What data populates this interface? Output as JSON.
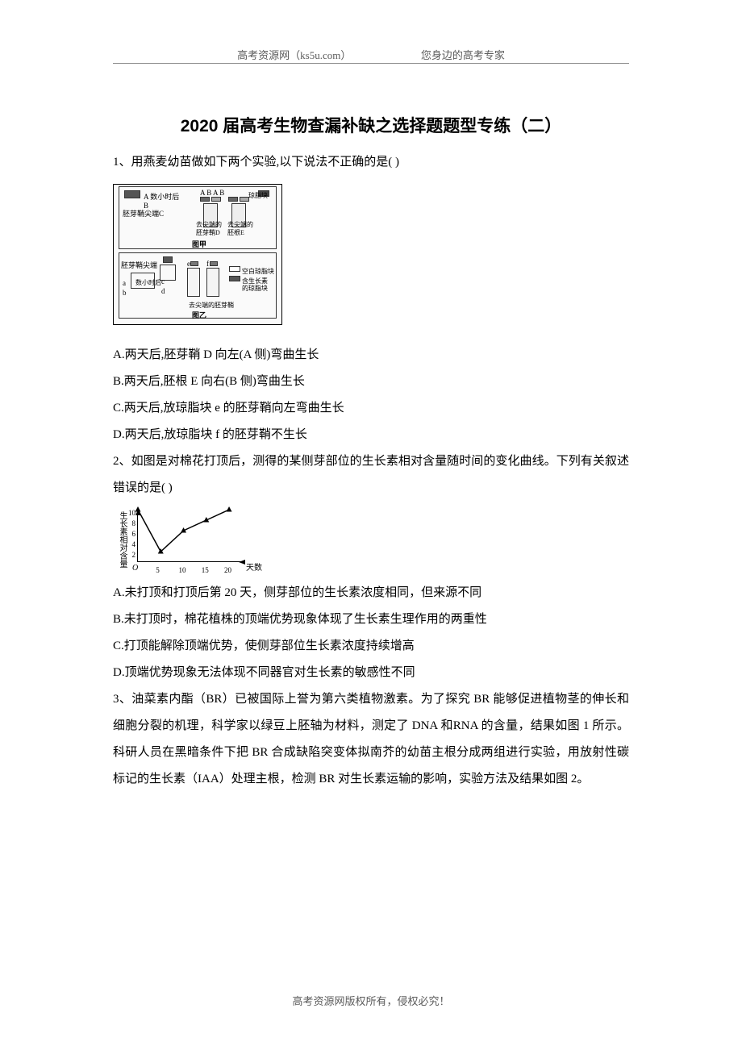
{
  "header": {
    "left": "高考资源网（ks5u.com）",
    "right": "您身边的高考专家"
  },
  "title": "2020 届高考生物查漏补缺之选择题题型专练（二）",
  "q1": {
    "stem": "1、用燕麦幼苗做如下两个实验,以下说法不正确的是(   )",
    "optA": "A.两天后,胚芽鞘 D 向左(A 侧)弯曲生长",
    "optB": "B.两天后,胚根 E 向右(B 侧)弯曲生长",
    "optC": "C.两天后,放琼脂块 e 的胚芽鞘向左弯曲生长",
    "optD": "D.两天后,放琼脂块 f 的胚芽鞘不生长",
    "fig": {
      "labels": {
        "l1": "A 数小时后",
        "l2": "B",
        "l3": "A  B    A  B",
        "l4": "琼脂块",
        "l5": "胚芽鞘尖端C",
        "l6": "去尖端的",
        "l7": "胚芽鞘D",
        "l8": "去尖端的",
        "l9": "胚根E",
        "l10": "图甲",
        "l11": "胚芽鞘尖端",
        "l12": "数小时后",
        "l13": "a",
        "l14": "b",
        "l15": "c",
        "l16": "d",
        "l17": "e",
        "l18": "f",
        "l19": "空白琼脂块",
        "l20": "含生长素",
        "l21": "的琼脂块",
        "l22": "去尖端的胚芽鞘",
        "l23": "图乙"
      }
    }
  },
  "q2": {
    "stem": "2、如图是对棉花打顶后，测得的某侧芽部位的生长素相对含量随时间的变化曲线。下列有关叙述错误的是(    )",
    "optA": "A.未打顶和打顶后第 20 天，侧芽部位的生长素浓度相同，但来源不同",
    "optB": "B.未打顶时，棉花植株的顶端优势现象体现了生长素生理作用的两重性",
    "optC": "C.打顶能解除顶端优势，使侧芽部位生长素浓度持续增高",
    "optD": "D.顶端优势现象无法体现不同器官对生长素的敏感性不同",
    "chart": {
      "ylabel": "生长素相对含量",
      "xlabel": "天数",
      "yticks": [
        "2",
        "4",
        "6",
        "8",
        "10"
      ],
      "xticks": [
        "5",
        "10",
        "15",
        "20"
      ],
      "points": [
        [
          0,
          10
        ],
        [
          5,
          2
        ],
        [
          10,
          6
        ],
        [
          15,
          8
        ],
        [
          20,
          10
        ]
      ],
      "ylim": [
        0,
        10
      ],
      "xlim": [
        0,
        23
      ],
      "line_color": "#000000",
      "marker": "triangle",
      "axes_color": "#000000",
      "bg_color": "#ffffff"
    }
  },
  "q3": {
    "stem": "3、油菜素内酯（BR）已被国际上誉为第六类植物激素。为了探究 BR  能够促进植物茎的伸长和细胞分裂的机理，科学家以绿豆上胚轴为材料，测定了 DNA  和RNA   的含量，结果如图 1 所示。科研人员在黑暗条件下把 BR  合成缺陷突变体拟南芥的幼苗主根分成两组进行实验，用放射性碳标记的生长素（IAA）处理主根，检测 BR 对生长素运输的影响，实验方法及结果如图 2。"
  },
  "footer": "高考资源网版权所有，侵权必究！"
}
